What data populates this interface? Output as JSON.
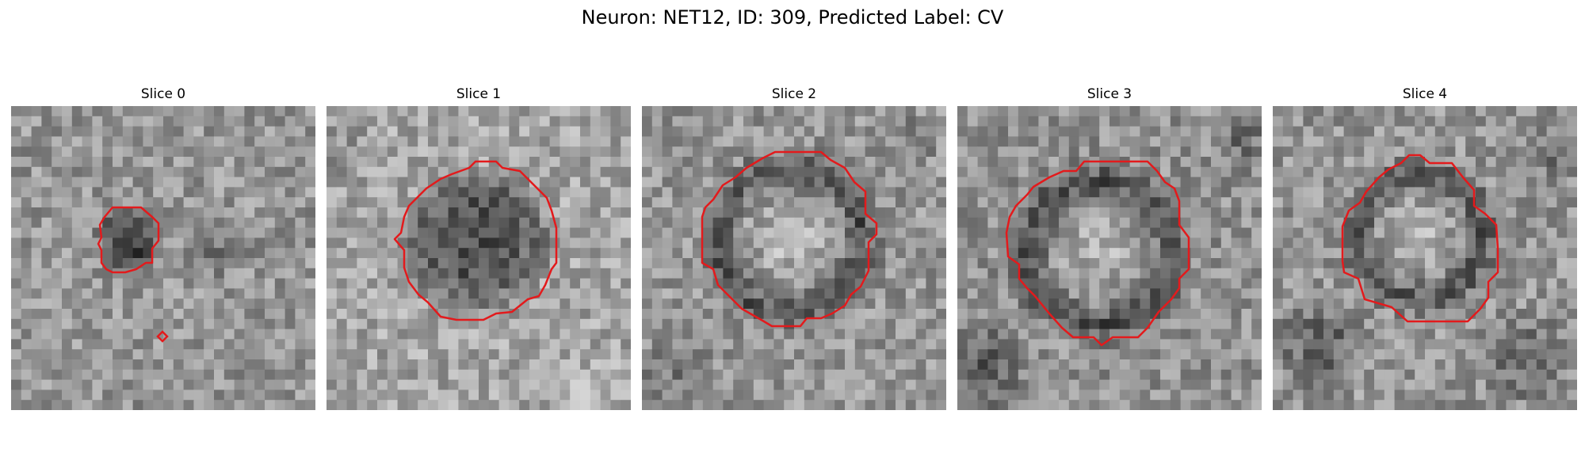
{
  "figure": {
    "title": "Neuron: NET12, ID: 309, Predicted Label: CV"
  },
  "panels": [
    {
      "title": "Slice 0"
    },
    {
      "title": "Slice 1"
    },
    {
      "title": "Slice 2"
    },
    {
      "title": "Slice 3"
    },
    {
      "title": "Slice 4"
    }
  ],
  "colors": {
    "contour": "#e31a1c",
    "background": "#ffffff",
    "colormap": "gray"
  }
}
